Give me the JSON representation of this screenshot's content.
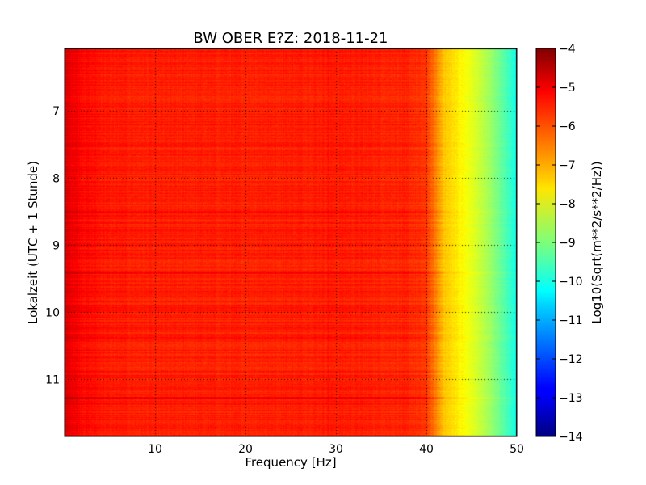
{
  "chart_data": {
    "type": "heatmap",
    "title": "BW OBER E?Z: 2018-11-21",
    "xlabel": "Frequency [Hz]",
    "ylabel": "Lokalzeit (UTC + 1 Stunde)",
    "xlim": [
      0,
      50
    ],
    "ylim": [
      11.85,
      6.07
    ],
    "x_ticks": [
      10,
      20,
      30,
      40,
      50
    ],
    "x_tick_labels": [
      "10",
      "20",
      "30",
      "40",
      "50"
    ],
    "y_ticks": [
      7,
      8,
      9,
      10,
      11
    ],
    "y_tick_labels": [
      "7",
      "8",
      "9",
      "10",
      "11"
    ],
    "grid": true,
    "colorbar": {
      "label": "Log10(Sqrt(m**2/s**2/Hz))",
      "colormap": "jet",
      "range": [
        -14,
        -4
      ],
      "ticks": [
        -4,
        -5,
        -6,
        -7,
        -8,
        -9,
        -10,
        -11,
        -12,
        -13,
        -14
      ],
      "tick_labels": [
        "−4",
        "−5",
        "−6",
        "−7",
        "−8",
        "−9",
        "−10",
        "−11",
        "−12",
        "−13",
        "−14"
      ]
    },
    "spectrum_profile": {
      "frequency_hz": [
        0,
        2,
        5,
        10,
        20,
        30,
        38,
        40,
        42,
        44,
        46,
        48,
        50
      ],
      "log10_amplitude": [
        -4.9,
        -5.3,
        -5.5,
        -5.55,
        -5.55,
        -5.5,
        -5.6,
        -5.8,
        -7.2,
        -7.7,
        -8.3,
        -9.1,
        -10.1
      ]
    },
    "strong_bands_time": [
      8.5,
      9.4,
      10.38,
      11.27
    ],
    "vertical_lines_hz": [
      29.1,
      31.5,
      40.0
    ]
  }
}
